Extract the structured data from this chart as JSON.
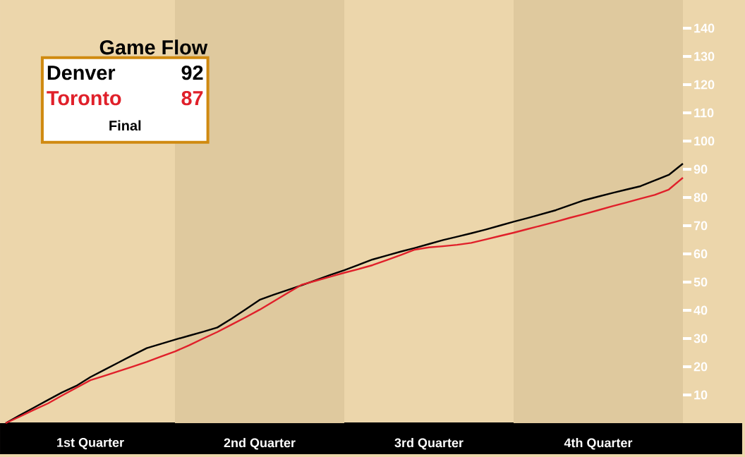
{
  "chart_data": {
    "type": "line",
    "title": "Game Flow",
    "categories": [
      null,
      null,
      null,
      null,
      null,
      null,
      "1st Quarter",
      null,
      null,
      null,
      null,
      null,
      null,
      null,
      null,
      null,
      null,
      null,
      "2nd Quarter",
      null,
      null,
      null,
      null,
      null,
      null,
      null,
      null,
      null,
      null,
      null,
      "3rd Quarter",
      null,
      null,
      null,
      null,
      null,
      null,
      null,
      null,
      null,
      null,
      null,
      "4th Quarter",
      null,
      null,
      null,
      null,
      null,
      null
    ],
    "ylim": [
      0,
      150
    ],
    "yticks": [
      10,
      20,
      30,
      40,
      50,
      60,
      70,
      80,
      90,
      100,
      110,
      120,
      130,
      140
    ],
    "series": [
      {
        "name": "Denver",
        "color": "#000000",
        "values": [
          0,
          2.8,
          5.5,
          8.2,
          10.9,
          13.2,
          16.3,
          18.9,
          21.5,
          24.1,
          26.6,
          28.1,
          29.6,
          31,
          32.4,
          33.9,
          37,
          40.3,
          43.7,
          45.5,
          47.2,
          48.9,
          50.7,
          52.5,
          54.2,
          56.1,
          58,
          59.4,
          60.8,
          62.1,
          63.5,
          64.9,
          66.1,
          67.3,
          68.6,
          70,
          71.4,
          72.7,
          74.1,
          75.5,
          77.3,
          79,
          80.3,
          81.6,
          82.8,
          84,
          86,
          88,
          92
        ]
      },
      {
        "name": "Toronto",
        "color": "#e0202a",
        "values": [
          0,
          2.3,
          4.7,
          7,
          9.8,
          12.5,
          15.2,
          16.8,
          18.4,
          20,
          21.7,
          23.6,
          25.4,
          27.6,
          30,
          32.3,
          34.9,
          37.5,
          40.2,
          43.2,
          46.2,
          49.1,
          50.5,
          51.9,
          53.3,
          54.6,
          56,
          57.8,
          59.6,
          61.5,
          62.3,
          62.7,
          63.2,
          63.9,
          65.1,
          66.3,
          67.5,
          68.8,
          70.1,
          71.4,
          72.8,
          74.1,
          75.5,
          76.9,
          78.2,
          79.6,
          80.9,
          82.8,
          87
        ]
      }
    ],
    "annotations": [
      "92",
      "87",
      "Final"
    ],
    "legend": "top left",
    "line_style": "solid",
    "grid": false
  }
}
